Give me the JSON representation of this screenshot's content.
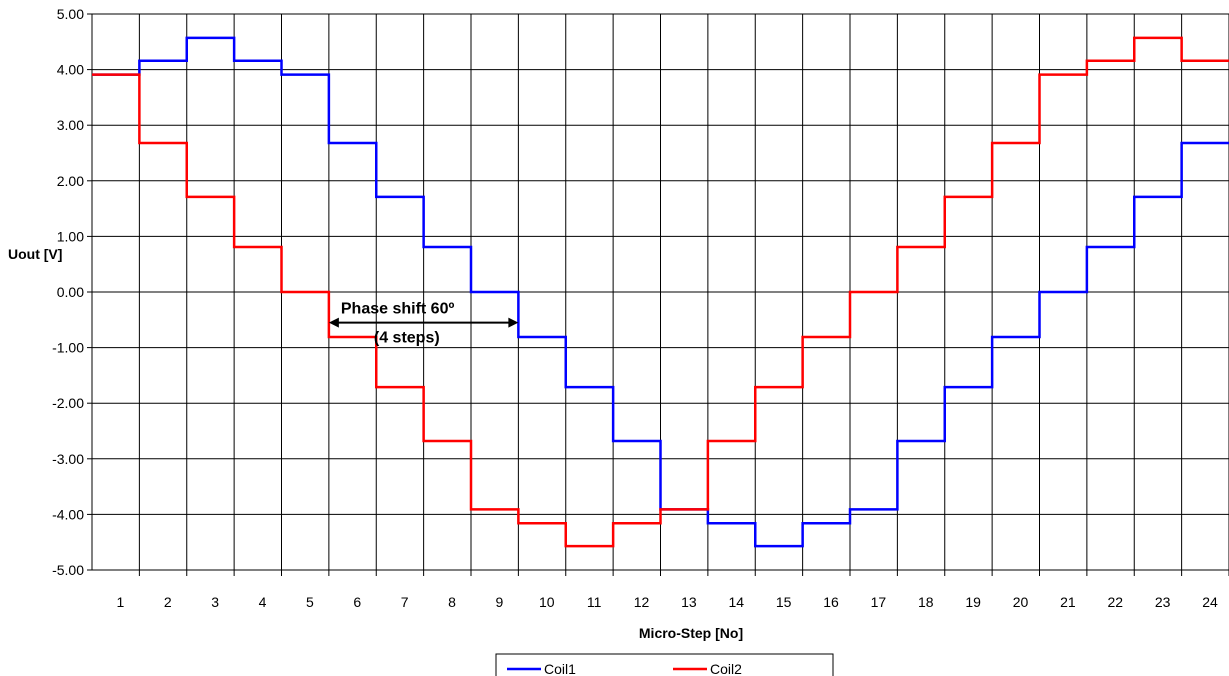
{
  "chart_data": {
    "type": "line",
    "step": true,
    "xlabel": "Micro-Step [No]",
    "ylabel": "Uout [V]",
    "ylim": [
      -5,
      5
    ],
    "y_ticks": [
      "5.00",
      "4.00",
      "3.00",
      "2.00",
      "1.00",
      "0.00",
      "-1.00",
      "-2.00",
      "-3.00",
      "-4.00",
      "-5.00"
    ],
    "categories": [
      "1",
      "2",
      "3",
      "4",
      "5",
      "6",
      "7",
      "8",
      "9",
      "10",
      "11",
      "12",
      "13",
      "14",
      "15",
      "16",
      "17",
      "18",
      "19",
      "20",
      "21",
      "22",
      "23",
      "24"
    ],
    "grid": true,
    "legend_position": "bottom",
    "series": [
      {
        "name": "Coil1",
        "color": "#0000ff",
        "values": [
          3.91,
          4.16,
          4.57,
          4.16,
          3.91,
          2.68,
          1.71,
          0.81,
          0.0,
          -0.81,
          -1.71,
          -2.68,
          -3.91,
          -4.16,
          -4.57,
          -4.16,
          -3.91,
          -2.68,
          -1.71,
          -0.81,
          0.0,
          0.81,
          1.71,
          2.68
        ]
      },
      {
        "name": "Coil2",
        "color": "#ff0000",
        "values": [
          3.91,
          2.68,
          1.71,
          0.81,
          0.0,
          -0.81,
          -1.71,
          -2.68,
          -3.91,
          -4.16,
          -4.57,
          -4.16,
          -3.91,
          -2.68,
          -1.71,
          -0.81,
          0.0,
          0.81,
          1.71,
          2.68,
          3.91,
          4.16,
          4.57,
          4.16
        ]
      }
    ],
    "annotations": [
      {
        "lines": [
          "Phase shift 60º",
          "(4 steps)"
        ],
        "arrow_from_step": 5,
        "arrow_to_step": 9,
        "arrow_y": -0.55
      }
    ]
  }
}
